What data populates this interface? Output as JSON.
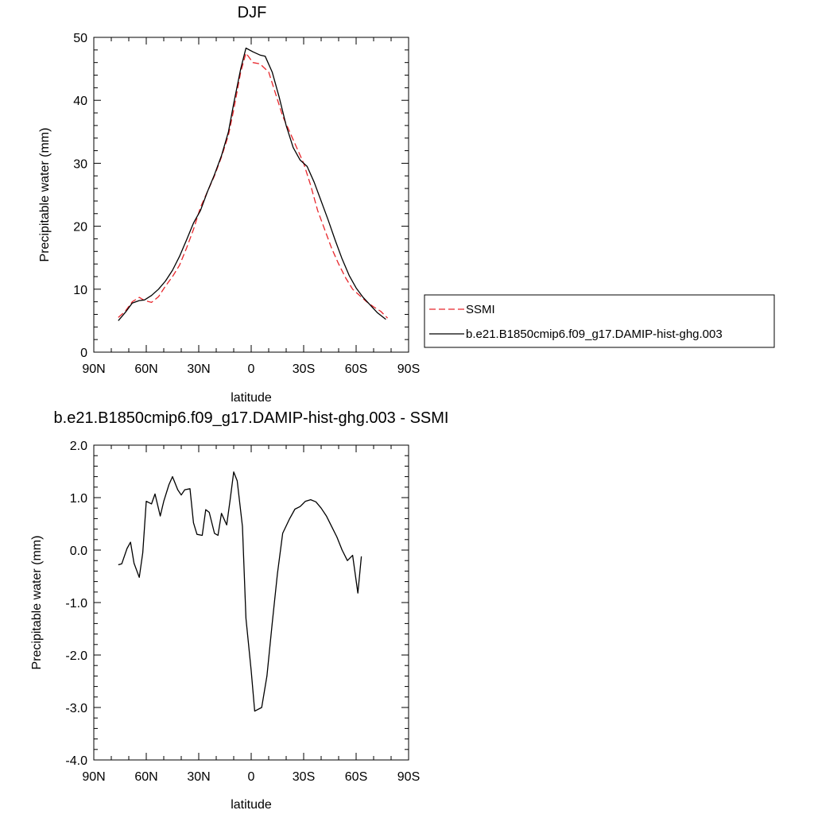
{
  "chart_data": [
    {
      "type": "line",
      "title": "DJF",
      "xlabel": "latitude",
      "ylabel": "Precipitable water (mm)",
      "xlim": [
        90,
        -90
      ],
      "ylim": [
        0,
        50
      ],
      "x_ticks": [
        90,
        60,
        30,
        0,
        -30,
        -60,
        -90
      ],
      "x_tick_labels": [
        "90N",
        "60N",
        "30N",
        "0",
        "30S",
        "60S",
        "90S"
      ],
      "y_ticks": [
        0,
        10,
        20,
        30,
        40,
        50
      ],
      "y_tick_labels": [
        "0",
        "10",
        "20",
        "30",
        "40",
        "50"
      ],
      "grid": false,
      "legend": {
        "placement": "right",
        "entries": [
          "SSMI",
          "b.e21.B1850cmip6.f09_g17.DAMIP-hist-ghg.003"
        ]
      },
      "series": [
        {
          "name": "SSMI",
          "color": "#e8262b",
          "dash": "dashed",
          "points": [
            [
              76,
              5.5
            ],
            [
              72,
              6.5
            ],
            [
              68,
              8.0
            ],
            [
              64,
              8.7
            ],
            [
              61,
              8.2
            ],
            [
              57,
              7.9
            ],
            [
              53,
              8.8
            ],
            [
              49,
              10.5
            ],
            [
              45,
              12.0
            ],
            [
              41,
              13.8
            ],
            [
              37,
              16.5
            ],
            [
              33,
              19.5
            ],
            [
              29,
              23.0
            ],
            [
              25,
              25.5
            ],
            [
              21,
              28.0
            ],
            [
              17,
              31.0
            ],
            [
              13,
              34.5
            ],
            [
              10,
              38.5
            ],
            [
              6,
              44.5
            ],
            [
              3,
              47.5
            ],
            [
              -1,
              46.0
            ],
            [
              -5,
              45.8
            ],
            [
              -10,
              44.5
            ],
            [
              -14,
              41.0
            ],
            [
              -18,
              37.5
            ],
            [
              -22,
              35.0
            ],
            [
              -26,
              32.5
            ],
            [
              -30,
              30.0
            ],
            [
              -34,
              26.5
            ],
            [
              -38,
              22.5
            ],
            [
              -42,
              19.5
            ],
            [
              -46,
              16.5
            ],
            [
              -50,
              14.0
            ],
            [
              -54,
              11.8
            ],
            [
              -58,
              10.0
            ],
            [
              -62,
              9.0
            ],
            [
              -66,
              8.0
            ],
            [
              -70,
              7.2
            ],
            [
              -74,
              6.5
            ],
            [
              -78,
              5.4
            ]
          ]
        },
        {
          "name": "b.e21.B1850cmip6.f09_g17.DAMIP-hist-ghg.003",
          "color": "#000000",
          "dash": "solid",
          "points": [
            [
              76,
              5.0
            ],
            [
              72,
              6.3
            ],
            [
              68,
              7.8
            ],
            [
              64,
              8.2
            ],
            [
              61,
              8.3
            ],
            [
              57,
              9.0
            ],
            [
              53,
              10.0
            ],
            [
              49,
              11.3
            ],
            [
              45,
              13.0
            ],
            [
              41,
              15.2
            ],
            [
              37,
              17.8
            ],
            [
              33,
              20.5
            ],
            [
              29,
              22.5
            ],
            [
              25,
              25.5
            ],
            [
              21,
              28.2
            ],
            [
              17,
              31.2
            ],
            [
              13,
              35.0
            ],
            [
              10,
              39.5
            ],
            [
              6,
              45.0
            ],
            [
              3,
              48.3
            ],
            [
              -1,
              47.7
            ],
            [
              -5,
              47.2
            ],
            [
              -8,
              47.0
            ],
            [
              -12,
              44.5
            ],
            [
              -16,
              40.5
            ],
            [
              -20,
              36.0
            ],
            [
              -24,
              32.5
            ],
            [
              -28,
              30.5
            ],
            [
              -32,
              29.5
            ],
            [
              -36,
              27.0
            ],
            [
              -40,
              24.0
            ],
            [
              -44,
              21.0
            ],
            [
              -48,
              17.8
            ],
            [
              -52,
              14.8
            ],
            [
              -56,
              12.2
            ],
            [
              -60,
              10.2
            ],
            [
              -64,
              8.7
            ],
            [
              -68,
              7.5
            ],
            [
              -72,
              6.3
            ],
            [
              -77,
              5.2
            ]
          ]
        }
      ]
    },
    {
      "type": "line",
      "title": "b.e21.B1850cmip6.f09_g17.DAMIP-hist-ghg.003 - SSMI",
      "xlabel": "latitude",
      "ylabel": "Precipitable water (mm)",
      "xlim": [
        90,
        -90
      ],
      "ylim": [
        -4,
        2
      ],
      "x_ticks": [
        90,
        60,
        30,
        0,
        -30,
        -60,
        -90
      ],
      "x_tick_labels": [
        "90N",
        "60N",
        "30N",
        "0",
        "30S",
        "60S",
        "90S"
      ],
      "y_ticks": [
        -4,
        -3,
        -2,
        -1,
        0,
        1,
        2
      ],
      "y_tick_labels": [
        "-4.0",
        "-3.0",
        "-2.0",
        "-1.0",
        "0.0",
        "1.0",
        "2.0"
      ],
      "grid": false,
      "series": [
        {
          "color": "#000000",
          "dash": "solid",
          "points": [
            [
              76,
              -0.28
            ],
            [
              74,
              -0.26
            ],
            [
              71,
              0.03
            ],
            [
              69,
              0.15
            ],
            [
              67,
              -0.25
            ],
            [
              64,
              -0.52
            ],
            [
              62,
              -0.05
            ],
            [
              60,
              0.93
            ],
            [
              57,
              0.88
            ],
            [
              55,
              1.07
            ],
            [
              52,
              0.65
            ],
            [
              50,
              0.93
            ],
            [
              47,
              1.25
            ],
            [
              45,
              1.4
            ],
            [
              42,
              1.15
            ],
            [
              40,
              1.05
            ],
            [
              38,
              1.15
            ],
            [
              35,
              1.17
            ],
            [
              33,
              0.52
            ],
            [
              31,
              0.3
            ],
            [
              28,
              0.28
            ],
            [
              26,
              0.77
            ],
            [
              24,
              0.72
            ],
            [
              21,
              0.32
            ],
            [
              19,
              0.28
            ],
            [
              17,
              0.7
            ],
            [
              14,
              0.48
            ],
            [
              12,
              0.97
            ],
            [
              10,
              1.49
            ],
            [
              8,
              1.32
            ],
            [
              5,
              0.45
            ],
            [
              3,
              -1.3
            ],
            [
              0,
              -2.3
            ],
            [
              -2,
              -3.07
            ],
            [
              -6,
              -3.0
            ],
            [
              -9,
              -2.4
            ],
            [
              -12,
              -1.4
            ],
            [
              -15,
              -0.45
            ],
            [
              -18,
              0.32
            ],
            [
              -22,
              0.6
            ],
            [
              -25,
              0.78
            ],
            [
              -28,
              0.83
            ],
            [
              -31,
              0.93
            ],
            [
              -34,
              0.96
            ],
            [
              -37,
              0.92
            ],
            [
              -40,
              0.8
            ],
            [
              -43,
              0.65
            ],
            [
              -46,
              0.45
            ],
            [
              -49,
              0.25
            ],
            [
              -52,
              0.0
            ],
            [
              -55,
              -0.2
            ],
            [
              -58,
              -0.1
            ],
            [
              -61,
              -0.82
            ],
            [
              -63,
              -0.12
            ]
          ]
        }
      ]
    }
  ]
}
